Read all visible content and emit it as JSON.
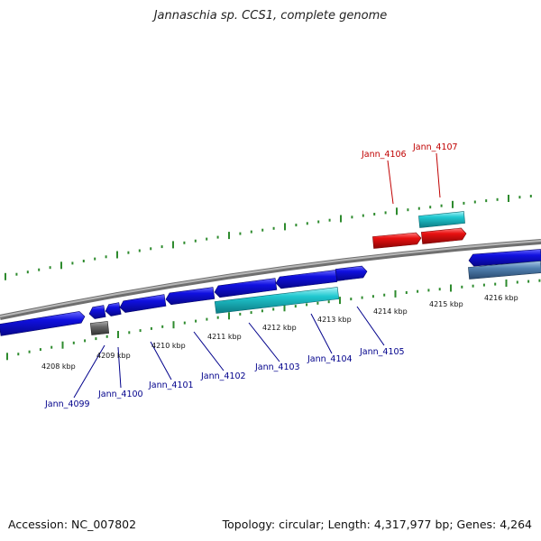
{
  "title": "Jannaschia sp. CCS1, complete genome",
  "footer": {
    "accession": "Accession: NC_007802",
    "topology": "Topology: circular; Length: 4,317,977 bp; Genes: 4,264"
  },
  "colors": {
    "backbone": "#888888",
    "tick": "#2e8b2e",
    "gene_blue": "#1010e0",
    "gene_cyan": "#20c8d0",
    "gene_red": "#e81010",
    "gene_gray": "#666666",
    "gene_steel": "#5080b0",
    "label_blue": "#00008b",
    "label_red": "#c00000"
  },
  "kbp_labels": [
    "4208 kbp",
    "4209 kbp",
    "4210 kbp",
    "4211 kbp",
    "4212 kbp",
    "4213 kbp",
    "4214 kbp",
    "4215 kbp",
    "4216 kbp"
  ],
  "gene_labels": [
    {
      "text": "Jann_4099",
      "color": "blue"
    },
    {
      "text": "Jann_4100",
      "color": "blue"
    },
    {
      "text": "Jann_4101",
      "color": "blue"
    },
    {
      "text": "Jann_4102",
      "color": "blue"
    },
    {
      "text": "Jann_4103",
      "color": "blue"
    },
    {
      "text": "Jann_4104",
      "color": "blue"
    },
    {
      "text": "Jann_4105",
      "color": "blue"
    },
    {
      "text": "Jann_4106",
      "color": "red"
    },
    {
      "text": "Jann_4107",
      "color": "red"
    }
  ]
}
